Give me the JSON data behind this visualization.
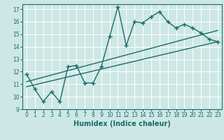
{
  "title": "",
  "xlabel": "Humidex (Indice chaleur)",
  "ylabel": "",
  "background_color": "#cde8e4",
  "grid_color": "#ffffff",
  "line_color": "#1a6b6b",
  "xlim": [
    -0.5,
    23.5
  ],
  "ylim": [
    9,
    17.4
  ],
  "xticks": [
    0,
    1,
    2,
    3,
    4,
    5,
    6,
    7,
    8,
    9,
    10,
    11,
    12,
    13,
    14,
    15,
    16,
    17,
    18,
    19,
    20,
    21,
    22,
    23
  ],
  "yticks": [
    9,
    10,
    11,
    12,
    13,
    14,
    15,
    16,
    17
  ],
  "line1_x": [
    0,
    1,
    2,
    3,
    4,
    5,
    6,
    7,
    8,
    9,
    10,
    11,
    12,
    13,
    14,
    15,
    16,
    17,
    18,
    19,
    20,
    21,
    22,
    23
  ],
  "line1_y": [
    11.8,
    10.6,
    9.6,
    10.4,
    9.6,
    12.4,
    12.5,
    11.1,
    11.1,
    12.4,
    14.8,
    17.2,
    14.1,
    16.0,
    15.9,
    16.4,
    16.8,
    16.0,
    15.5,
    15.8,
    15.5,
    15.1,
    14.6,
    14.4
  ],
  "line2_x": [
    0,
    23
  ],
  "line2_y": [
    10.8,
    14.4
  ],
  "line3_x": [
    0,
    23
  ],
  "line3_y": [
    11.2,
    15.3
  ]
}
